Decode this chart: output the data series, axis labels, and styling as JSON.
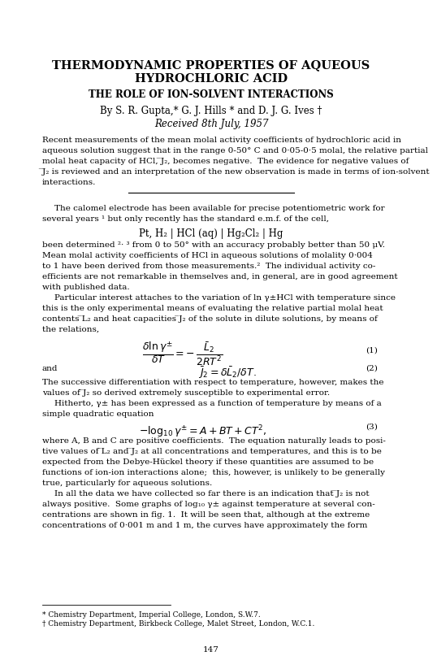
{
  "title_line1": "THERMODYNAMIC PROPERTIES OF AQUEOUS",
  "title_line2": "HYDROCHLORIC ACID",
  "subtitle": "THE ROLE OF ION-SOLVENT INTERACTIONS",
  "authors": "By S. R. Gupta,* G. J. Hills * and D. J. G. Ives †",
  "received": "Received 8th July, 1957",
  "eq1_num": "(1)",
  "eq2_num": "(2)",
  "eq3_num": "(3)",
  "footnote1": "* Chemistry Department, Imperial College, London, S.W.7.",
  "footnote2": "† Chemistry Department, Birkbeck College, Malet Street, London, W.C.1.",
  "page_num": "147",
  "bg_color": "#ffffff",
  "text_color": "#000000",
  "abstract_lines": [
    "Recent measurements of the mean molal activity coefficients of hydrochloric acid in",
    "aqueous solution suggest that in the range 0-50° C and 0·05-0·5 molal, the relative partial",
    "molal heat capacity of HCl, ̅J₂, becomes negative.  The evidence for negative values of",
    "̅J₂ is reviewed and an interpretation of the new observation is made in terms of ion-solvent",
    "interactions."
  ],
  "para1_lines": [
    "The calomel electrode has been available for precise potentiometric work for",
    "several years ¹ but only recently has the standard e.m.f. of the cell,"
  ],
  "cell_formula": "Pt, H₂ | HCl (aq) | Hg₂Cl₂ | Hg",
  "para2_lines": [
    "been determined ²· ³ from 0 to 50° with an accuracy probably better than 50 μV.",
    "Mean molal activity coefficients of HCl in aqueous solutions of molality 0·004",
    "to 1 have been derived from those measurements.²  The individual activity co-",
    "efficients are not remarkable in themselves and, in general, are in good agreement",
    "with published data."
  ],
  "para3_lines": [
    "Particular interest attaches to the variation of ln γ±HCl with temperature since",
    "this is the only experimental means of evaluating the relative partial molal heat",
    "contents ̅L₂ and heat capacities ̅J₂ of the solute in dilute solutions, by means of",
    "the relations,"
  ],
  "para4_lines": [
    "The successive differentiation with respect to temperature, however, makes the",
    "values of ̅J₂ so derived extremely susceptible to experimental error."
  ],
  "para5_lines": [
    "Hitherto, γ± has been expressed as a function of temperature by means of a",
    "simple quadratic equation"
  ],
  "para6_lines": [
    "where A, B and C are positive coefficients.  The equation naturally leads to posi-",
    "tive values of ̅L₂ and ̅J₂ at all concentrations and temperatures, and this is to be",
    "expected from the Debye-Hückel theory if these quantities are assumed to be",
    "functions of ion-ion interactions alone;  this, however, is unlikely to be generally",
    "true, particularly for aqueous solutions."
  ],
  "para7_lines": [
    "In all the data we have collected so far there is an indication that ̅J₂ is not",
    "always positive.  Some graphs of log₁₀ γ± against temperature at several con-",
    "centrations are shown in fig. 1.  It will be seen that, although at the extreme",
    "concentrations of 0·001 m and 1 m, the curves have approximately the form"
  ]
}
